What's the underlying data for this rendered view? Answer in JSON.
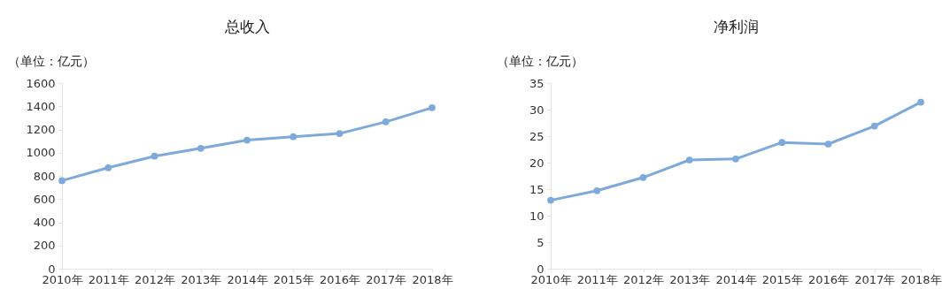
{
  "chart_data": [
    {
      "type": "line",
      "title": "总收入",
      "ylabel": "（单位：亿元）",
      "categories": [
        "2010年",
        "2011年",
        "2012年",
        "2013年",
        "2014年",
        "2015年",
        "2016年",
        "2017年",
        "2018年"
      ],
      "series": [
        {
          "color": "#7eaadb",
          "values": [
            759,
            870,
            970,
            1038,
            1108,
            1138,
            1165,
            1266,
            1388
          ]
        }
      ],
      "ylim": [
        0,
        1600
      ],
      "yticks": [
        0,
        200,
        400,
        600,
        800,
        1000,
        1200,
        1400,
        1600
      ],
      "marker": "circle"
    },
    {
      "type": "line",
      "title": "净利润",
      "ylabel": "（单位：亿元）",
      "categories": [
        "2010年",
        "2011年",
        "2012年",
        "2013年",
        "2014年",
        "2015年",
        "2016年",
        "2017年",
        "2018年"
      ],
      "series": [
        {
          "color": "#7eaadb",
          "values": [
            12.9,
            14.7,
            17.2,
            20.5,
            20.7,
            23.8,
            23.5,
            26.9,
            31.4
          ]
        }
      ],
      "ylim": [
        0,
        35
      ],
      "yticks": [
        0,
        5,
        10,
        15,
        20,
        25,
        30,
        35
      ],
      "marker": "circle"
    }
  ]
}
